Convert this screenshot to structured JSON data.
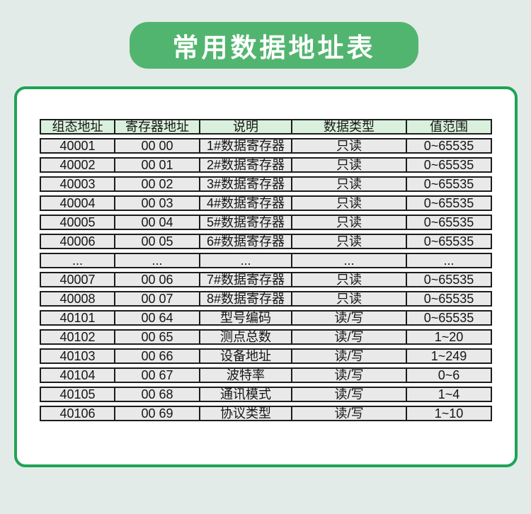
{
  "page": {
    "background_color": "#e2ebe7"
  },
  "banner": {
    "title": "常用数据地址表",
    "background_color": "#52b56f",
    "text_color": "#ffffff"
  },
  "card": {
    "background_color": "#ffffff",
    "border_color": "#1ea355"
  },
  "table": {
    "header_bg_color": "#d9f0dc",
    "cell_bg_color": "#e9e9e9",
    "border_color": "#1d1d1d",
    "headers": [
      "组态地址",
      "寄存器地址",
      "说明",
      "数据类型",
      "值范围"
    ],
    "rows": [
      [
        "40001",
        "00 00",
        "1#数据寄存器",
        "只读",
        "0~65535"
      ],
      [
        "40002",
        "00 01",
        "2#数据寄存器",
        "只读",
        "0~65535"
      ],
      [
        "40003",
        "00 02",
        "3#数据寄存器",
        "只读",
        "0~65535"
      ],
      [
        "40004",
        "00 03",
        "4#数据寄存器",
        "只读",
        "0~65535"
      ],
      [
        "40005",
        "00 04",
        "5#数据寄存器",
        "只读",
        "0~65535"
      ],
      [
        "40006",
        "00 05",
        "6#数据寄存器",
        "只读",
        "0~65535"
      ],
      [
        "...",
        "...",
        "...",
        "...",
        "..."
      ],
      [
        "40007",
        "00 06",
        "7#数据寄存器",
        "只读",
        "0~65535"
      ],
      [
        "40008",
        "00 07",
        "8#数据寄存器",
        "只读",
        "0~65535"
      ],
      [
        "40101",
        "00 64",
        "型号编码",
        "读/写",
        "0~65535"
      ],
      [
        "40102",
        "00 65",
        "测点总数",
        "读/写",
        "1~20"
      ],
      [
        "40103",
        "00 66",
        "设备地址",
        "读/写",
        "1~249"
      ],
      [
        "40104",
        "00 67",
        "波特率",
        "读/写",
        "0~6"
      ],
      [
        "40105",
        "00 68",
        "通讯模式",
        "读/写",
        "1~4"
      ],
      [
        "40106",
        "00 69",
        "协议类型",
        "读/写",
        "1~10"
      ]
    ]
  }
}
